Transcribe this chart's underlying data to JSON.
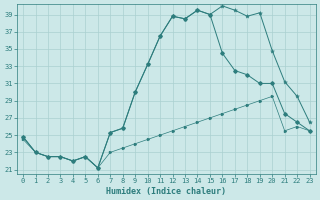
{
  "title": "",
  "xlabel": "Humidex (Indice chaleur)",
  "ylabel": "",
  "bg_color": "#cce8e8",
  "grid_color": "#aad0d0",
  "line_color": "#2d7d7d",
  "xlim": [
    -0.5,
    23.5
  ],
  "ylim": [
    20.5,
    40.2
  ],
  "yticks": [
    21,
    23,
    25,
    27,
    29,
    31,
    33,
    35,
    37,
    39
  ],
  "xticks": [
    0,
    1,
    2,
    3,
    4,
    5,
    6,
    7,
    8,
    9,
    10,
    11,
    12,
    13,
    14,
    15,
    16,
    17,
    18,
    19,
    20,
    21,
    22,
    23
  ],
  "series_top": [
    24.8,
    23.0,
    22.5,
    22.5,
    22.0,
    22.5,
    21.2,
    25.3,
    25.8,
    30.0,
    33.2,
    36.5,
    38.8,
    38.5,
    39.5,
    39.0,
    40.0,
    39.5,
    38.8,
    39.2,
    34.8,
    31.2,
    29.5,
    26.5
  ],
  "series_mid": [
    24.8,
    23.0,
    22.5,
    22.5,
    22.0,
    22.5,
    21.2,
    25.3,
    25.8,
    30.0,
    33.2,
    36.5,
    38.8,
    38.5,
    39.5,
    39.0,
    34.5,
    32.5,
    32.0,
    31.0,
    31.0,
    27.5,
    26.5,
    25.5
  ],
  "series_bot": [
    24.5,
    23.0,
    22.5,
    22.5,
    22.0,
    22.5,
    21.2,
    23.0,
    23.5,
    24.0,
    24.5,
    25.0,
    25.5,
    26.0,
    26.5,
    27.0,
    27.5,
    28.0,
    28.5,
    29.0,
    29.5,
    25.5,
    26.0,
    25.5
  ]
}
